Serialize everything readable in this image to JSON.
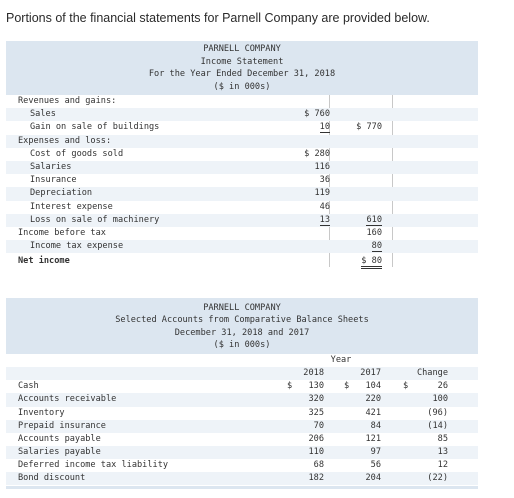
{
  "intro": "Portions of the financial statements for Parnell Company are provided below.",
  "income": {
    "header": [
      "PARNELL COMPANY",
      "Income Statement",
      "For the Year Ended December 31, 2018",
      "($ in 000s)"
    ],
    "rows": [
      {
        "label": "Revenues and gains:",
        "c1": "",
        "c2": ""
      },
      {
        "label": "Sales",
        "c1": "$ 760",
        "c2": ""
      },
      {
        "label": "Gain on sale of buildings",
        "c1": "10",
        "c2": "$ 770"
      },
      {
        "label": "Expenses and loss:",
        "c1": "",
        "c2": ""
      },
      {
        "label": "Cost of goods sold",
        "c1": "$ 280",
        "c2": ""
      },
      {
        "label": "Salaries",
        "c1": "116",
        "c2": ""
      },
      {
        "label": "Insurance",
        "c1": "36",
        "c2": ""
      },
      {
        "label": "Depreciation",
        "c1": "119",
        "c2": ""
      },
      {
        "label": "Interest expense",
        "c1": "46",
        "c2": ""
      },
      {
        "label": "Loss on sale of machinery",
        "c1": "13",
        "c2": "610"
      },
      {
        "label": "Income before tax",
        "c1": "",
        "c2": "160"
      },
      {
        "label": "Income tax expense",
        "c1": "",
        "c2": "80"
      },
      {
        "label": "Net income",
        "c1": "",
        "c2": "$ 80"
      }
    ]
  },
  "balance": {
    "header": [
      "PARNELL COMPANY",
      "Selected Accounts from Comparative Balance Sheets",
      "December 31, 2018 and 2017",
      "($ in 000s)"
    ],
    "year_label": "Year",
    "col_2018": "2018",
    "col_2017": "2017",
    "col_change": "Change",
    "rows": [
      {
        "label": "Cash",
        "v18": "130",
        "v17": "104",
        "ch": "26",
        "dollar": true
      },
      {
        "label": "Accounts receivable",
        "v18": "320",
        "v17": "220",
        "ch": "100"
      },
      {
        "label": "Inventory",
        "v18": "325",
        "v17": "421",
        "ch": "(96)"
      },
      {
        "label": "Prepaid insurance",
        "v18": "70",
        "v17": "84",
        "ch": "(14)"
      },
      {
        "label": "Accounts payable",
        "v18": "206",
        "v17": "121",
        "ch": "85"
      },
      {
        "label": "Salaries payable",
        "v18": "110",
        "v17": "97",
        "ch": "13"
      },
      {
        "label": "Deferred income tax liability",
        "v18": "68",
        "v17": "56",
        "ch": "12"
      },
      {
        "label": "Bond discount",
        "v18": "182",
        "v17": "204",
        "ch": "(22)"
      }
    ]
  }
}
